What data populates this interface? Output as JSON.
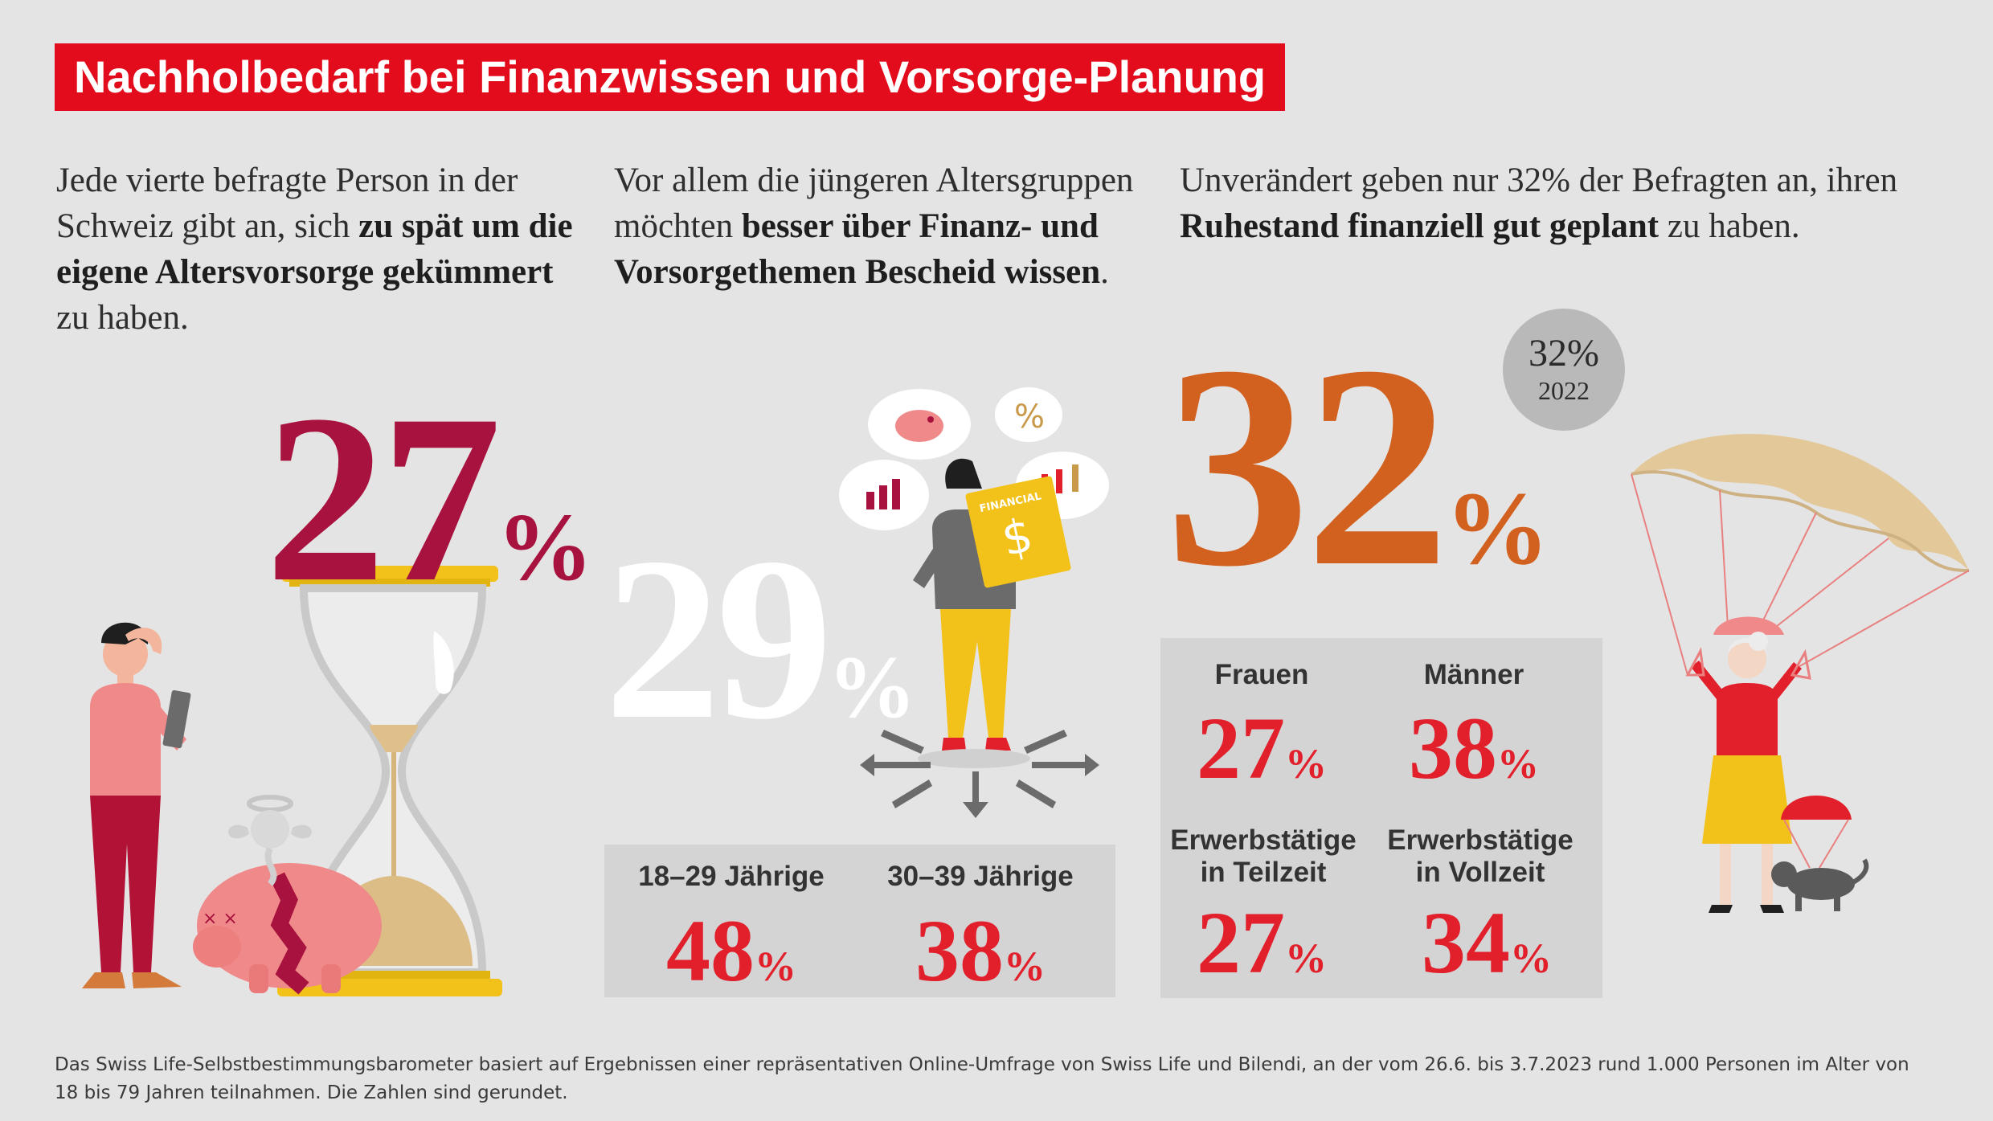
{
  "title": "Nachholbedarf bei Finanzwissen und Vorsorge-Planung",
  "col1": {
    "text_before": "Jede vierte befragte Person in der Schweiz gibt an, sich ",
    "text_bold": "zu spät um die eigene Alters­vorsorge gekümmert",
    "text_after": " zu haben.",
    "number": "27",
    "percent_sign": "%",
    "color": "#a8123e"
  },
  "col2": {
    "text_before": "Vor allem die jüngeren Alters­gruppen möchten ",
    "text_bold": "besser über Finanz- und Vorsorgethemen Bescheid wissen",
    "text_after": ".",
    "number": "29",
    "percent_sign": "%",
    "book_label": "FINANCIAL",
    "groups": [
      {
        "label": "18–29 Jährige",
        "value": "48",
        "unit": "%"
      },
      {
        "label": "30–39 Jährige",
        "value": "38",
        "unit": "%"
      }
    ]
  },
  "col3": {
    "text_before": "Unverändert geben nur 32% der Befragten an, ihren ",
    "text_bold": "Ruhestand finanziell gut geplant",
    "text_after": " zu haben.",
    "number": "32",
    "percent_sign": "%",
    "color": "#d2601e",
    "badge_value": "32%",
    "badge_year": "2022",
    "groups": [
      {
        "label": "Frauen",
        "value": "27",
        "unit": "%"
      },
      {
        "label": "Männer",
        "value": "38",
        "unit": "%"
      },
      {
        "label": "Erwerbstätige in Teilzeit",
        "value": "27",
        "unit": "%"
      },
      {
        "label": "Erwerbstätige in Vollzeit",
        "value": "34",
        "unit": "%"
      }
    ]
  },
  "footer": "Das Swiss Life-Selbstbestimmungsbarometer basiert auf Ergebnissen einer repräsentativen Online-Umfrage von Swiss Life und Bilendi, an der vom 26.6. bis 3.7.2023 rund 1.000 Personen im Alter von 18 bis 79 Jahren teilnahmen. Die Zahlen sind gerundet.",
  "colors": {
    "accent": "#e30c1c",
    "value_red": "#e2202c",
    "box_grey": "#d4d4d4",
    "background": "#e4e4e4"
  }
}
